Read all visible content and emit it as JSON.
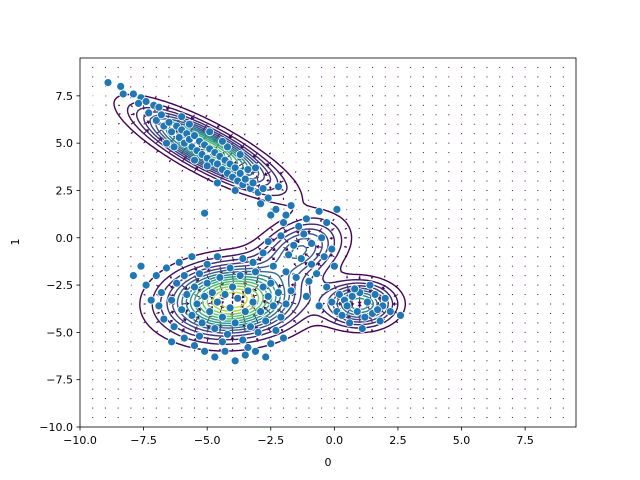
{
  "chart_data": {
    "type": "scatter",
    "title": "",
    "xlabel": "0",
    "ylabel": "1",
    "xlim": [
      -10,
      9.5
    ],
    "ylim": [
      -10,
      9.5
    ],
    "x_ticks": [
      -10,
      -7.5,
      -5,
      -2.5,
      0,
      2.5,
      5,
      7.5
    ],
    "y_ticks": [
      -10,
      -7.5,
      -5,
      -2.5,
      0,
      2.5,
      5,
      7.5
    ],
    "x_tick_labels": [
      "−10.0",
      "−7.5",
      "−5.0",
      "−2.5",
      "0.0",
      "2.5",
      "5.0",
      "7.5"
    ],
    "y_tick_labels": [
      "−10.0",
      "−7.5",
      "−5.0",
      "−2.5",
      "0.0",
      "2.5",
      "5.0",
      "7.5"
    ],
    "grid": false,
    "colors": {
      "points": "#1f77b4",
      "point_edge": "#ffffff",
      "quiver": "#440154",
      "contour_low": "#440154",
      "contour_mid": "#21918c",
      "contour_high": "#bddf26"
    },
    "overlays": [
      "density-contours",
      "gradient-quiver"
    ],
    "clusters": [
      {
        "center": [
          -5.0,
          4.7
        ],
        "approx_points": 90,
        "orientation": "diagonal, upper-left to lower-right"
      },
      {
        "center": [
          -4.0,
          -3.3
        ],
        "approx_points": 170,
        "orientation": "elongated horizontally"
      },
      {
        "center": [
          1.0,
          -3.5
        ],
        "approx_points": 40,
        "orientation": "compact"
      },
      {
        "center": [
          -1.5,
          -0.5
        ],
        "approx_points": 50,
        "orientation": "bridge between clusters"
      }
    ],
    "points": [
      [
        -8.9,
        8.2
      ],
      [
        -8.4,
        8.0
      ],
      [
        -8.3,
        7.6
      ],
      [
        -7.9,
        7.6
      ],
      [
        -7.6,
        7.4
      ],
      [
        -7.4,
        7.2
      ],
      [
        -7.1,
        7.0
      ],
      [
        -7.3,
        6.6
      ],
      [
        -7.0,
        6.2
      ],
      [
        -6.8,
        6.5
      ],
      [
        -6.7,
        5.9
      ],
      [
        -6.5,
        6.1
      ],
      [
        -6.4,
        5.6
      ],
      [
        -6.2,
        5.9
      ],
      [
        -6.1,
        5.3
      ],
      [
        -6.0,
        5.7
      ],
      [
        -5.9,
        5.0
      ],
      [
        -5.8,
        5.5
      ],
      [
        -5.7,
        5.2
      ],
      [
        -5.6,
        4.8
      ],
      [
        -5.5,
        5.4
      ],
      [
        -5.4,
        4.6
      ],
      [
        -5.3,
        5.1
      ],
      [
        -5.2,
        4.4
      ],
      [
        -5.1,
        4.9
      ],
      [
        -5.0,
        4.2
      ],
      [
        -4.9,
        4.7
      ],
      [
        -4.8,
        4.0
      ],
      [
        -4.7,
        4.5
      ],
      [
        -4.6,
        3.9
      ],
      [
        -4.5,
        4.3
      ],
      [
        -4.4,
        3.6
      ],
      [
        -4.3,
        4.1
      ],
      [
        -4.2,
        3.4
      ],
      [
        -4.1,
        3.9
      ],
      [
        -4.0,
        3.2
      ],
      [
        -3.9,
        3.7
      ],
      [
        -3.8,
        3.0
      ],
      [
        -3.7,
        3.4
      ],
      [
        -3.6,
        2.8
      ],
      [
        -3.5,
        3.1
      ],
      [
        -3.3,
        2.6
      ],
      [
        -3.2,
        2.9
      ],
      [
        -3.0,
        2.4
      ],
      [
        -2.8,
        2.6
      ],
      [
        -2.6,
        2.1
      ],
      [
        -5.7,
        6.0
      ],
      [
        -6.3,
        4.8
      ],
      [
        -4.2,
        4.8
      ],
      [
        -5.0,
        3.8
      ],
      [
        -6.6,
        5.0
      ],
      [
        -3.9,
        2.5
      ],
      [
        -4.6,
        2.9
      ],
      [
        -5.5,
        4.1
      ],
      [
        -3.4,
        3.6
      ],
      [
        -2.9,
        1.8
      ],
      [
        -5.1,
        1.3
      ],
      [
        -2.3,
        1.5
      ],
      [
        -1.9,
        1.2
      ],
      [
        -2.0,
        0.8
      ],
      [
        -1.4,
        0.6
      ],
      [
        -0.6,
        1.4
      ],
      [
        -0.3,
        0.8
      ],
      [
        -2.6,
        -0.2
      ],
      [
        -2.1,
        0.1
      ],
      [
        -1.6,
        -0.4
      ],
      [
        -1.2,
        0.2
      ],
      [
        -0.9,
        -0.3
      ],
      [
        -0.5,
        0.0
      ],
      [
        -1.8,
        -0.9
      ],
      [
        -1.3,
        -1.1
      ],
      [
        -0.9,
        -1.4
      ],
      [
        -0.4,
        -1.0
      ],
      [
        -0.1,
        -0.6
      ],
      [
        0.0,
        -1.5
      ],
      [
        -2.4,
        -1.5
      ],
      [
        -1.9,
        -1.8
      ],
      [
        -1.5,
        -2.1
      ],
      [
        -1.0,
        -2.3
      ],
      [
        -0.7,
        -1.9
      ],
      [
        -0.3,
        -2.6
      ],
      [
        0.2,
        -3.0
      ],
      [
        -0.1,
        -3.4
      ],
      [
        0.1,
        -3.9
      ],
      [
        -2.8,
        -0.8
      ],
      [
        -3.2,
        -1.3
      ],
      [
        -2.5,
        -2.4
      ],
      [
        -1.7,
        -2.8
      ],
      [
        -1.1,
        -3.1
      ],
      [
        -0.6,
        -3.6
      ],
      [
        0.4,
        -3.3
      ],
      [
        0.7,
        -3.1
      ],
      [
        1.0,
        -2.9
      ],
      [
        1.3,
        -3.4
      ],
      [
        1.6,
        -3.0
      ],
      [
        1.9,
        -3.6
      ],
      [
        0.9,
        -3.9
      ],
      [
        1.2,
        -4.2
      ],
      [
        0.6,
        -4.5
      ],
      [
        1.5,
        -4.0
      ],
      [
        1.8,
        -4.4
      ],
      [
        0.3,
        -4.1
      ],
      [
        2.0,
        -3.2
      ],
      [
        0.8,
        -2.7
      ],
      [
        1.4,
        -2.5
      ],
      [
        2.6,
        -4.1
      ],
      [
        1.1,
        -4.8
      ],
      [
        0.5,
        -3.6
      ],
      [
        1.7,
        -3.8
      ],
      [
        2.2,
        -3.9
      ],
      [
        -7.9,
        -2.0
      ],
      [
        -7.4,
        -2.5
      ],
      [
        -7.0,
        -2.0
      ],
      [
        -6.8,
        -2.9
      ],
      [
        -6.6,
        -1.6
      ],
      [
        -6.4,
        -3.3
      ],
      [
        -6.2,
        -2.4
      ],
      [
        -6.0,
        -3.8
      ],
      [
        -5.9,
        -2.0
      ],
      [
        -5.8,
        -3.0
      ],
      [
        -5.6,
        -4.1
      ],
      [
        -5.5,
        -2.6
      ],
      [
        -5.4,
        -3.5
      ],
      [
        -5.3,
        -1.9
      ],
      [
        -5.2,
        -4.5
      ],
      [
        -5.1,
        -3.1
      ],
      [
        -5.0,
        -2.4
      ],
      [
        -4.9,
        -3.9
      ],
      [
        -4.8,
        -2.9
      ],
      [
        -4.7,
        -4.8
      ],
      [
        -4.6,
        -3.4
      ],
      [
        -4.5,
        -2.1
      ],
      [
        -4.4,
        -4.2
      ],
      [
        -4.3,
        -3.0
      ],
      [
        -4.2,
        -5.1
      ],
      [
        -4.1,
        -3.7
      ],
      [
        -4.0,
        -2.6
      ],
      [
        -3.9,
        -4.5
      ],
      [
        -3.8,
        -3.2
      ],
      [
        -3.7,
        -2.0
      ],
      [
        -3.6,
        -5.4
      ],
      [
        -3.5,
        -3.9
      ],
      [
        -3.4,
        -2.8
      ],
      [
        -3.3,
        -4.7
      ],
      [
        -3.2,
        -3.4
      ],
      [
        -3.1,
        -1.8
      ],
      [
        -3.0,
        -5.0
      ],
      [
        -2.9,
        -3.9
      ],
      [
        -2.8,
        -2.6
      ],
      [
        -2.7,
        -4.4
      ],
      [
        -2.6,
        -3.1
      ],
      [
        -2.5,
        -5.6
      ],
      [
        -2.4,
        -3.6
      ],
      [
        -2.3,
        -4.9
      ],
      [
        -2.2,
        -2.9
      ],
      [
        -2.1,
        -4.2
      ],
      [
        -2.0,
        -5.3
      ],
      [
        -1.9,
        -3.5
      ],
      [
        -6.7,
        -4.3
      ],
      [
        -6.3,
        -4.7
      ],
      [
        -5.9,
        -5.3
      ],
      [
        -5.5,
        -5.7
      ],
      [
        -5.1,
        -6.0
      ],
      [
        -4.7,
        -6.3
      ],
      [
        -4.3,
        -6.0
      ],
      [
        -3.9,
        -6.5
      ],
      [
        -3.5,
        -6.2
      ],
      [
        -3.1,
        -6.0
      ],
      [
        -2.7,
        -6.3
      ],
      [
        -6.9,
        -3.6
      ],
      [
        -7.2,
        -3.3
      ],
      [
        -6.1,
        -1.3
      ],
      [
        -5.6,
        -1.0
      ],
      [
        -5.0,
        -1.4
      ],
      [
        -4.6,
        -1.0
      ],
      [
        -4.1,
        -1.6
      ],
      [
        -3.6,
        -1.1
      ],
      [
        -7.6,
        -1.5
      ],
      [
        -4.4,
        -5.5
      ],
      [
        -3.4,
        -5.8
      ],
      [
        -5.3,
        -5.2
      ],
      [
        -6.4,
        -5.5
      ],
      [
        -7.7,
        7.1
      ],
      [
        -6.9,
        6.9
      ],
      [
        -6.0,
        6.4
      ],
      [
        -4.9,
        5.6
      ],
      [
        -4.4,
        5.1
      ],
      [
        -3.7,
        4.4
      ],
      [
        -3.1,
        3.7
      ],
      [
        -2.5,
        1.2
      ],
      [
        -2.2,
        2.7
      ],
      [
        -1.7,
        1.7
      ],
      [
        -1.1,
        1.0
      ],
      [
        0.1,
        1.5
      ]
    ]
  }
}
